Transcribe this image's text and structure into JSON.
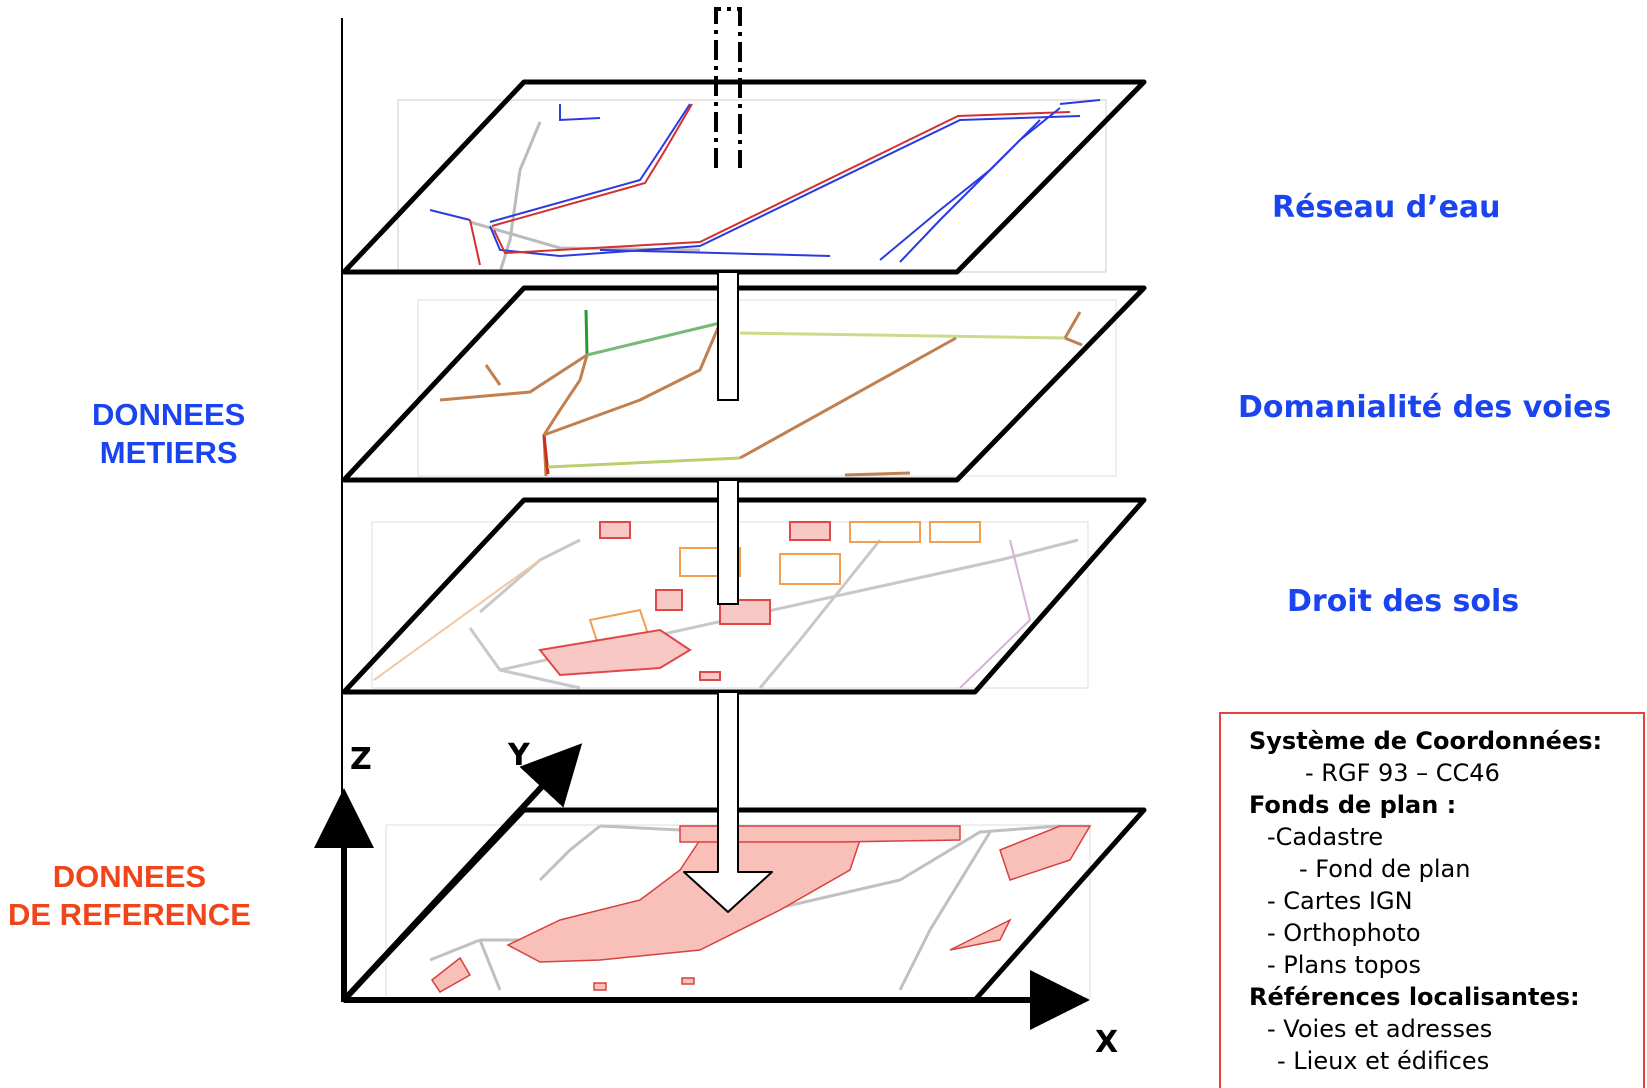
{
  "group_labels": {
    "metiers": [
      "DONNEES",
      "METIERS"
    ],
    "reference": [
      "DONNEES",
      "DE REFERENCE"
    ]
  },
  "layers": [
    {
      "label": "Réseau d’eau"
    },
    {
      "label": "Domanialité des voies"
    },
    {
      "label": "Droit des sols"
    },
    {
      "label": ""
    }
  ],
  "axes": {
    "x": "X",
    "y": "Y",
    "z": "Z"
  },
  "info_box": {
    "heading_coord": "Système de Coordonnées:",
    "coord_item": "- RGF 93 – CC46",
    "heading_fonds": "Fonds de plan :",
    "fonds_cadastre": "-Cadastre",
    "fonds_fond_plan": "- Fond de plan",
    "fonds_cartes": "- Cartes IGN",
    "fonds_ortho": "- Orthophoto",
    "fonds_plans": "- Plans topos",
    "heading_refs": "Références localisantes:",
    "refs_voies": "- Voies et adresses",
    "refs_lieux": "- Lieux et édifices"
  },
  "colors": {
    "metiers": "#1a44f0",
    "reference": "#f0441a",
    "box_border": "#e8413a",
    "water_network": "#2a3ae0",
    "roads": "#b8b8b8",
    "parcels_fill": "#f6c3be",
    "domain_brown": "#c08050",
    "domain_green": "#2a9a2a"
  }
}
